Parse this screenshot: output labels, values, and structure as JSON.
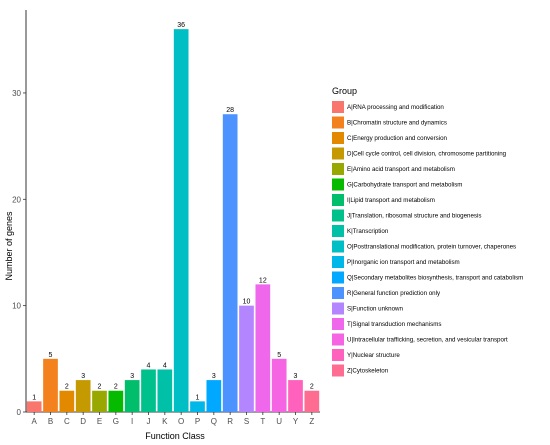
{
  "chart_data": {
    "type": "bar",
    "xlabel": "Function Class",
    "ylabel": "Number of genes",
    "ylim": [
      0,
      37.8
    ],
    "yticks": [
      0,
      10,
      20,
      30
    ],
    "grid": false,
    "legend_title": "Group",
    "legend_position": "right",
    "categories": [
      "A",
      "B",
      "C",
      "D",
      "E",
      "G",
      "I",
      "J",
      "K",
      "O",
      "P",
      "Q",
      "R",
      "S",
      "T",
      "U",
      "Y",
      "Z"
    ],
    "values": [
      1,
      5,
      2,
      3,
      2,
      2,
      3,
      4,
      4,
      36,
      1,
      3,
      28,
      10,
      12,
      5,
      3,
      2
    ],
    "colors": [
      "#F8766D",
      "#F2811E",
      "#E38900",
      "#C49A00",
      "#99A800",
      "#06BA00",
      "#00BE6C",
      "#00C08B",
      "#00C1A7",
      "#00BFC4",
      "#00B8E7",
      "#00A9FF",
      "#4D93FF",
      "#B385FF",
      "#EF67EB",
      "#F564E3",
      "#FF62BC",
      "#FF6C91"
    ],
    "legend": [
      {
        "label": "A|RNA processing and modification",
        "color": "#F8766D"
      },
      {
        "label": "B|Chromatin structure and dynamics",
        "color": "#F2811E"
      },
      {
        "label": "C|Energy production and conversion",
        "color": "#E38900"
      },
      {
        "label": "D|Cell cycle control, cell division, chromosome partitioning",
        "color": "#C49A00"
      },
      {
        "label": "E|Amino acid transport and metabolism",
        "color": "#99A800"
      },
      {
        "label": "G|Carbohydrate transport and metabolism",
        "color": "#06BA00"
      },
      {
        "label": "I|Lipid transport and metabolism",
        "color": "#00BE6C"
      },
      {
        "label": "J|Translation, ribosomal structure and biogenesis",
        "color": "#00C08B"
      },
      {
        "label": "K|Transcription",
        "color": "#00C1A7"
      },
      {
        "label": "O|Posttranslational modification, protein turnover, chaperones",
        "color": "#00BFC4"
      },
      {
        "label": "P|Inorganic ion transport and metabolism",
        "color": "#00B8E7"
      },
      {
        "label": "Q|Secondary metabolites biosynthesis, transport and catabolism",
        "color": "#00A9FF"
      },
      {
        "label": "R|General function prediction only",
        "color": "#4D93FF"
      },
      {
        "label": "S|Function unknown",
        "color": "#B385FF"
      },
      {
        "label": "T|Signal transduction mechanisms",
        "color": "#EF67EB"
      },
      {
        "label": "U|Intracellular trafficking, secretion, and vesicular transport",
        "color": "#F564E3"
      },
      {
        "label": "Y|Nuclear structure",
        "color": "#FF62BC"
      },
      {
        "label": "Z|Cytoskeleton",
        "color": "#FF6C91"
      }
    ]
  }
}
